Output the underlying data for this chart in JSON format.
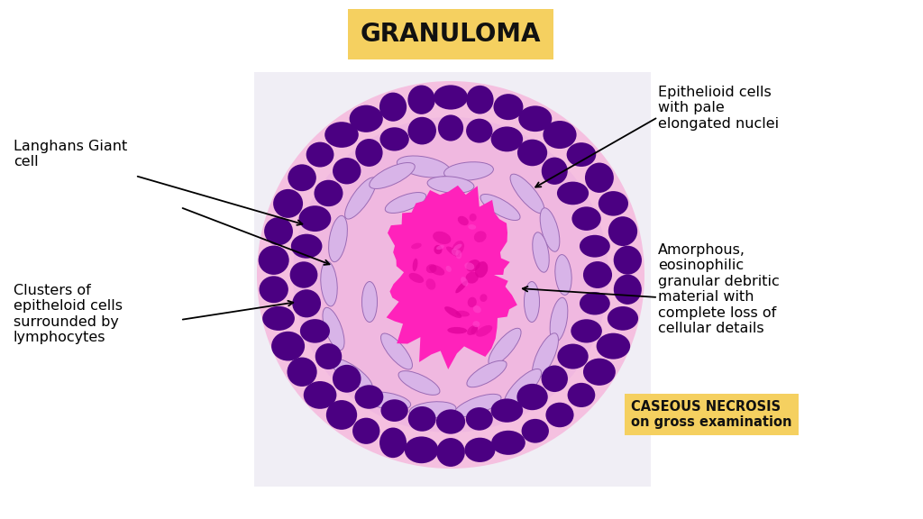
{
  "title": "GRANULOMA",
  "title_bg": "#F5D060",
  "title_fontsize": 20,
  "bg_color": "#ffffff",
  "outer_circle_color": "#F5C0E0",
  "mid_circle_color": "#EAA0D5",
  "lymphocyte_color": "#4B0082",
  "lymphocyte_dark": "#3A006F",
  "epithelioid_fill": "#D8B4E8",
  "epithelioid_edge": "#9B6BB5",
  "necrosis_color": "#FF00AA",
  "necrosis_color2": "#EE0099",
  "label_langhans": "Langhans Giant\ncell",
  "label_epithelioid_right": "Epithelioid cells\nwith pale\nelongated nuclei",
  "label_clusters": "Clusters of\nepitheloid cells\nsurrounded by\nlymphocytes",
  "label_amorphous": "Amorphous,\neosinophilic\ngranular debritic\nmaterial with\ncomplete loss of\ncellular details",
  "label_caseous_line1": "CASEOUS NECROSIS",
  "label_caseous_line2": "on gross examination",
  "caseous_bg": "#F5D060",
  "text_fontsize": 11.5
}
